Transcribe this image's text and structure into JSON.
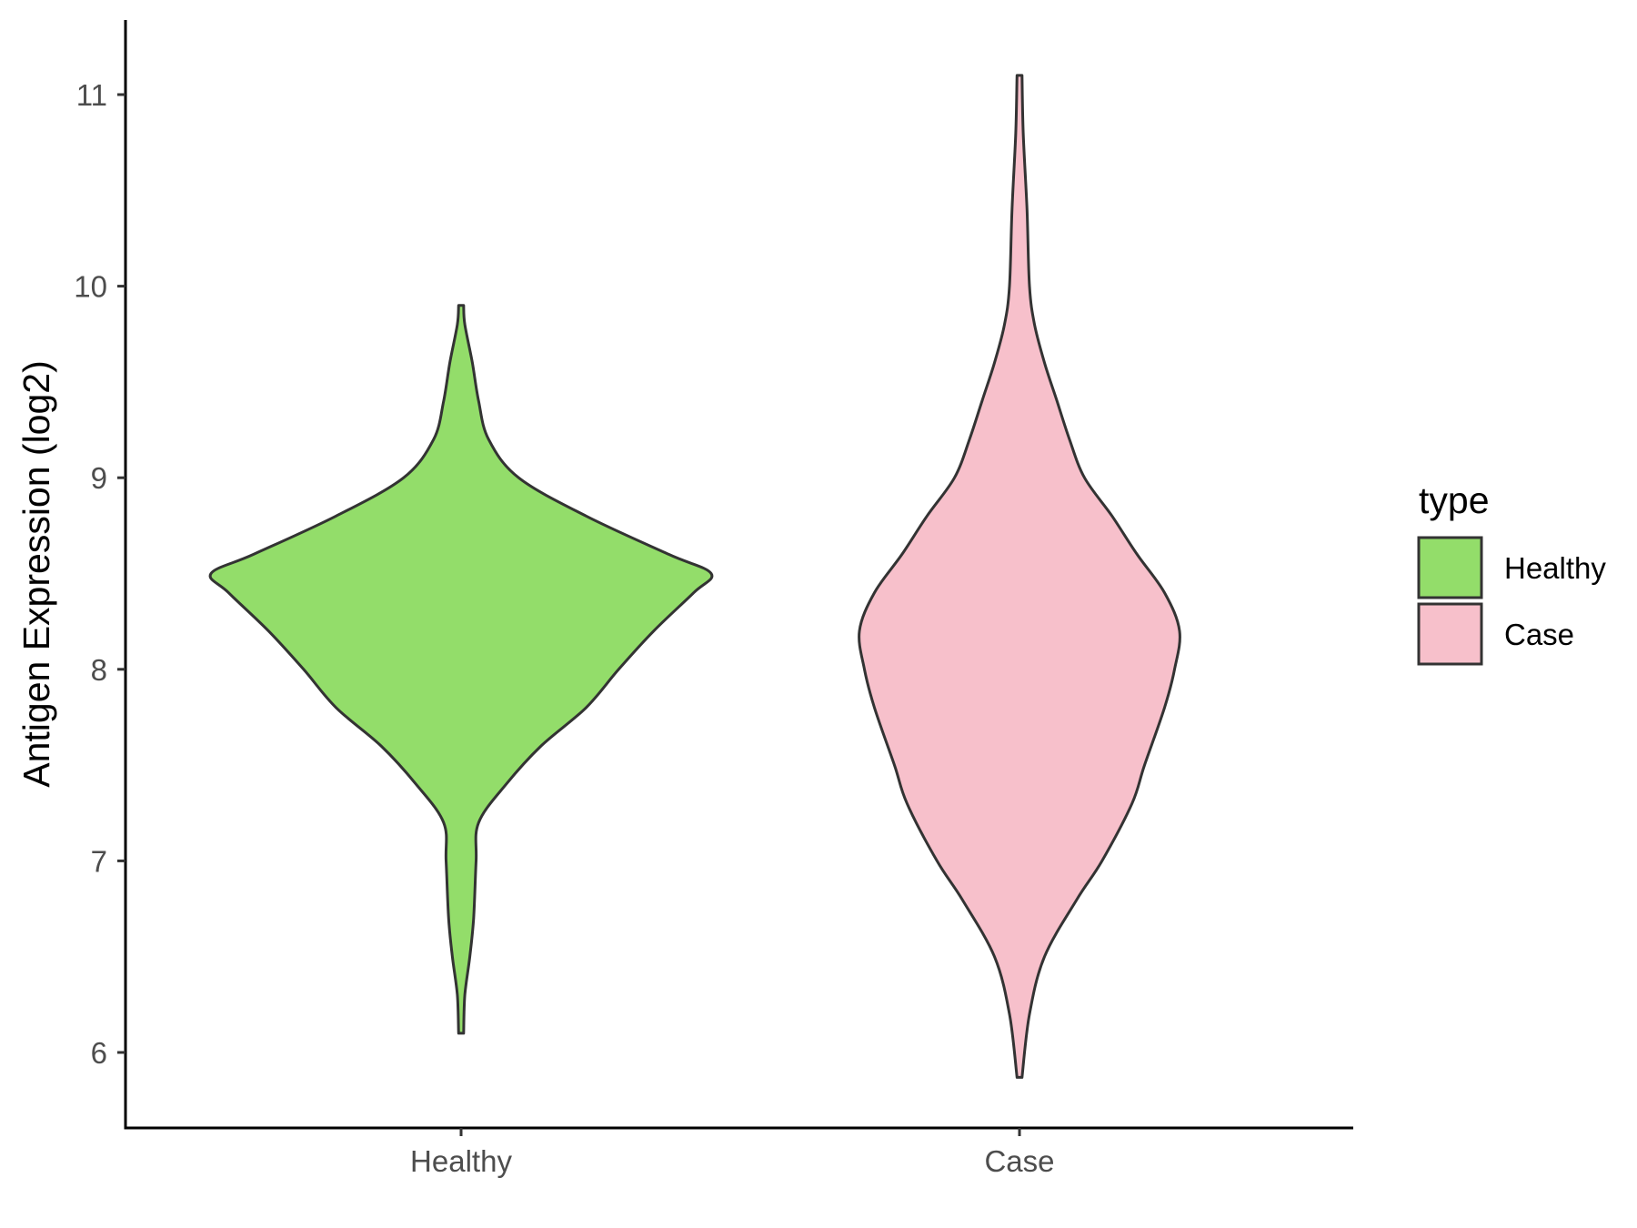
{
  "chart_data": {
    "type": "violin",
    "title": "",
    "xlabel": "",
    "ylabel": "Antigen Expression (log2)",
    "ylim": [
      5.6,
      11.4
    ],
    "yticks": [
      6,
      7,
      8,
      9,
      10,
      11
    ],
    "categories": [
      "Healthy",
      "Case"
    ],
    "legend": {
      "title": "type",
      "position": "right",
      "items": [
        {
          "label": "Healthy",
          "color": "#93DD6A"
        },
        {
          "label": "Case",
          "color": "#F7C0CB"
        }
      ]
    },
    "series": [
      {
        "name": "Healthy",
        "color": "#93DD6A",
        "profile": [
          {
            "y": 6.1,
            "w": 0.01
          },
          {
            "y": 6.3,
            "w": 0.015
          },
          {
            "y": 6.5,
            "w": 0.035
          },
          {
            "y": 6.7,
            "w": 0.05
          },
          {
            "y": 7.0,
            "w": 0.06
          },
          {
            "y": 7.2,
            "w": 0.07
          },
          {
            "y": 7.4,
            "w": 0.18
          },
          {
            "y": 7.6,
            "w": 0.32
          },
          {
            "y": 7.8,
            "w": 0.5
          },
          {
            "y": 8.0,
            "w": 0.63
          },
          {
            "y": 8.2,
            "w": 0.77
          },
          {
            "y": 8.4,
            "w": 0.93
          },
          {
            "y": 8.5,
            "w": 1.0
          },
          {
            "y": 8.6,
            "w": 0.83
          },
          {
            "y": 8.8,
            "w": 0.5
          },
          {
            "y": 9.0,
            "w": 0.23
          },
          {
            "y": 9.2,
            "w": 0.11
          },
          {
            "y": 9.4,
            "w": 0.07
          },
          {
            "y": 9.6,
            "w": 0.045
          },
          {
            "y": 9.8,
            "w": 0.015
          },
          {
            "y": 9.9,
            "w": 0.01
          }
        ]
      },
      {
        "name": "Case",
        "color": "#F7C0CB",
        "profile": [
          {
            "y": 5.87,
            "w": 0.01
          },
          {
            "y": 6.2,
            "w": 0.04
          },
          {
            "y": 6.5,
            "w": 0.1
          },
          {
            "y": 6.8,
            "w": 0.23
          },
          {
            "y": 7.0,
            "w": 0.33
          },
          {
            "y": 7.3,
            "w": 0.45
          },
          {
            "y": 7.5,
            "w": 0.5
          },
          {
            "y": 7.8,
            "w": 0.58
          },
          {
            "y": 8.0,
            "w": 0.62
          },
          {
            "y": 8.2,
            "w": 0.64
          },
          {
            "y": 8.4,
            "w": 0.58
          },
          {
            "y": 8.6,
            "w": 0.47
          },
          {
            "y": 8.8,
            "w": 0.37
          },
          {
            "y": 9.0,
            "w": 0.26
          },
          {
            "y": 9.2,
            "w": 0.2
          },
          {
            "y": 9.4,
            "w": 0.15
          },
          {
            "y": 9.6,
            "w": 0.1
          },
          {
            "y": 9.8,
            "w": 0.06
          },
          {
            "y": 10.0,
            "w": 0.04
          },
          {
            "y": 10.4,
            "w": 0.03
          },
          {
            "y": 10.8,
            "w": 0.015
          },
          {
            "y": 11.1,
            "w": 0.01
          }
        ]
      }
    ]
  }
}
